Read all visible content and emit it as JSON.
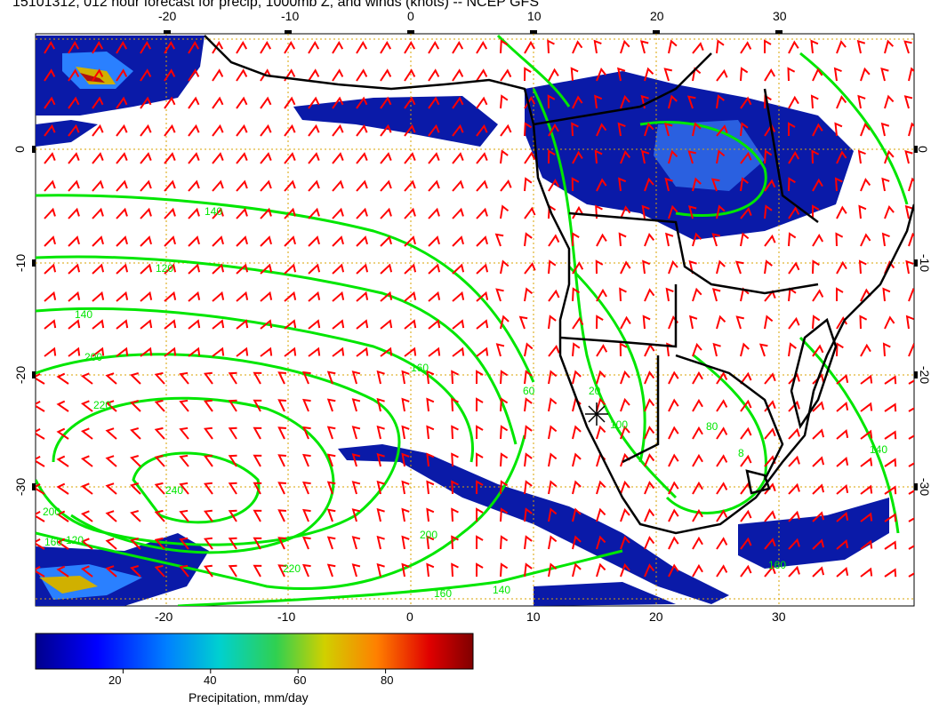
{
  "title": "15101312, 012 hour forecast for precip, 1000mb Z, and winds (knots) -- NCEP GFS",
  "map": {
    "lon_ticks_top": [
      "-20",
      "-10",
      "0",
      "10",
      "20",
      "30"
    ],
    "lon_ticks_bottom": [
      "-20",
      "-10",
      "0",
      "10",
      "20",
      "30"
    ],
    "lat_ticks_left": [
      "0",
      "-10",
      "-20",
      "-30"
    ],
    "lat_ticks_right": [
      "0",
      "-10",
      "-20",
      "-30"
    ],
    "lon_range": [
      -30,
      40
    ],
    "lat_range": [
      -40,
      10
    ],
    "contour_labels": [
      "140",
      "120",
      "140",
      "160",
      "200",
      "220",
      "240",
      "200",
      "160",
      "120",
      "220",
      "200",
      "160",
      "140",
      "60",
      "20",
      "100",
      "80",
      "160",
      "140",
      "8"
    ],
    "colors": {
      "contour": "#00e600",
      "wind_barb": "#ff0000",
      "coastline": "#000000",
      "grid": "#d9a300",
      "precip_low": "#00008c",
      "precip_high": "#8b0000"
    }
  },
  "colorbar": {
    "ticks": [
      "20",
      "40",
      "60",
      "80"
    ],
    "tick_values": [
      20,
      40,
      60,
      80
    ],
    "range": [
      0,
      100
    ],
    "title": "Precipitation, mm/day"
  }
}
